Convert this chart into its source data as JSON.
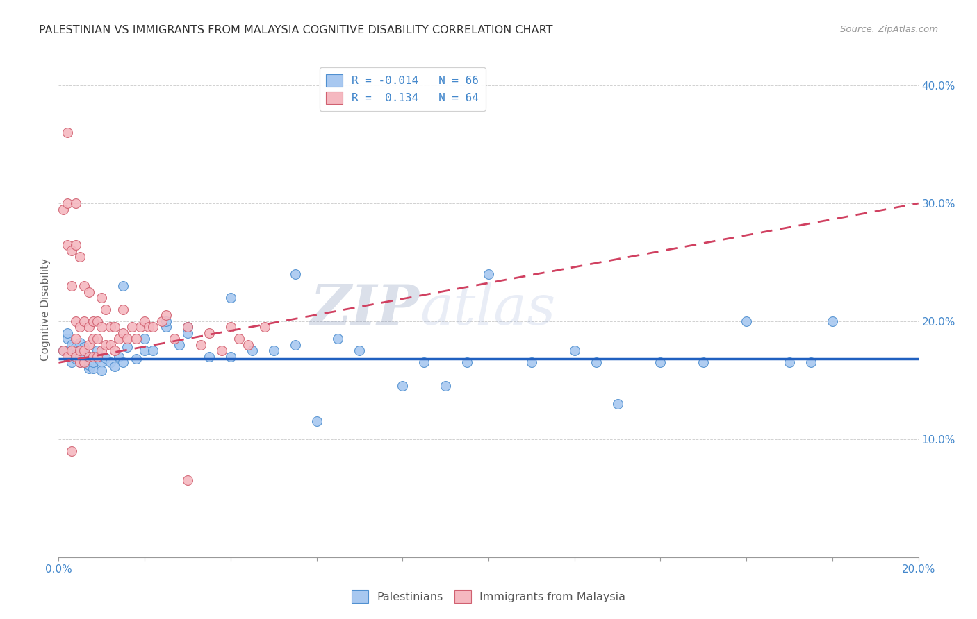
{
  "title": "PALESTINIAN VS IMMIGRANTS FROM MALAYSIA COGNITIVE DISABILITY CORRELATION CHART",
  "source": "Source: ZipAtlas.com",
  "ylabel": "Cognitive Disability",
  "xlim": [
    0.0,
    0.2
  ],
  "ylim": [
    0.0,
    0.42
  ],
  "xticks": [
    0.0,
    0.02,
    0.04,
    0.06,
    0.08,
    0.1,
    0.12,
    0.14,
    0.16,
    0.18,
    0.2
  ],
  "yticks": [
    0.0,
    0.1,
    0.2,
    0.3,
    0.4
  ],
  "legend_labels": [
    "Palestinians",
    "Immigrants from Malaysia"
  ],
  "legend_r_values": [
    "R = -0.014",
    "R =  0.134"
  ],
  "legend_n_values": [
    "N = 66",
    "N = 64"
  ],
  "blue_color": "#a8c8f0",
  "pink_color": "#f5b8c0",
  "blue_edge_color": "#5090d0",
  "pink_edge_color": "#d06070",
  "blue_line_color": "#2060c0",
  "pink_line_color": "#d04060",
  "watermark_zip": "ZIP",
  "watermark_atlas": "atlas",
  "blue_scatter_x": [
    0.001,
    0.002,
    0.002,
    0.003,
    0.003,
    0.003,
    0.004,
    0.004,
    0.004,
    0.005,
    0.005,
    0.005,
    0.005,
    0.006,
    0.006,
    0.006,
    0.007,
    0.007,
    0.007,
    0.008,
    0.008,
    0.009,
    0.009,
    0.01,
    0.01,
    0.011,
    0.012,
    0.013,
    0.014,
    0.015,
    0.016,
    0.018,
    0.02,
    0.022,
    0.025,
    0.028,
    0.03,
    0.035,
    0.04,
    0.045,
    0.05,
    0.055,
    0.06,
    0.065,
    0.07,
    0.08,
    0.09,
    0.1,
    0.11,
    0.12,
    0.125,
    0.13,
    0.14,
    0.15,
    0.16,
    0.17,
    0.175,
    0.18,
    0.085,
    0.095,
    0.055,
    0.04,
    0.03,
    0.025,
    0.02,
    0.015
  ],
  "blue_scatter_y": [
    0.175,
    0.185,
    0.19,
    0.175,
    0.18,
    0.165,
    0.172,
    0.168,
    0.178,
    0.182,
    0.17,
    0.175,
    0.165,
    0.173,
    0.166,
    0.178,
    0.16,
    0.163,
    0.17,
    0.16,
    0.165,
    0.169,
    0.175,
    0.165,
    0.158,
    0.169,
    0.165,
    0.162,
    0.17,
    0.165,
    0.178,
    0.168,
    0.175,
    0.175,
    0.195,
    0.18,
    0.19,
    0.17,
    0.17,
    0.175,
    0.175,
    0.18,
    0.115,
    0.185,
    0.175,
    0.145,
    0.145,
    0.24,
    0.165,
    0.175,
    0.165,
    0.13,
    0.165,
    0.165,
    0.2,
    0.165,
    0.165,
    0.2,
    0.165,
    0.165,
    0.24,
    0.22,
    0.195,
    0.2,
    0.185,
    0.23
  ],
  "pink_scatter_x": [
    0.001,
    0.001,
    0.002,
    0.002,
    0.002,
    0.003,
    0.003,
    0.003,
    0.003,
    0.004,
    0.004,
    0.004,
    0.004,
    0.004,
    0.005,
    0.005,
    0.005,
    0.005,
    0.006,
    0.006,
    0.006,
    0.006,
    0.007,
    0.007,
    0.007,
    0.007,
    0.008,
    0.008,
    0.008,
    0.009,
    0.009,
    0.009,
    0.01,
    0.01,
    0.01,
    0.011,
    0.011,
    0.012,
    0.012,
    0.013,
    0.013,
    0.014,
    0.015,
    0.015,
    0.016,
    0.017,
    0.018,
    0.019,
    0.02,
    0.021,
    0.022,
    0.024,
    0.025,
    0.027,
    0.03,
    0.033,
    0.035,
    0.038,
    0.04,
    0.042,
    0.044,
    0.048,
    0.03,
    0.002
  ],
  "pink_scatter_y": [
    0.175,
    0.295,
    0.3,
    0.265,
    0.17,
    0.26,
    0.23,
    0.175,
    0.09,
    0.3,
    0.265,
    0.2,
    0.185,
    0.17,
    0.255,
    0.195,
    0.175,
    0.165,
    0.23,
    0.2,
    0.175,
    0.165,
    0.225,
    0.195,
    0.18,
    0.17,
    0.2,
    0.185,
    0.17,
    0.2,
    0.185,
    0.17,
    0.22,
    0.195,
    0.175,
    0.21,
    0.18,
    0.195,
    0.18,
    0.195,
    0.175,
    0.185,
    0.21,
    0.19,
    0.185,
    0.195,
    0.185,
    0.195,
    0.2,
    0.195,
    0.195,
    0.2,
    0.205,
    0.185,
    0.195,
    0.18,
    0.19,
    0.175,
    0.195,
    0.185,
    0.18,
    0.195,
    0.065,
    0.36
  ],
  "blue_trend_x": [
    0.0,
    0.2
  ],
  "blue_trend_y": [
    0.168,
    0.168
  ],
  "pink_trend_x": [
    0.0,
    0.2
  ],
  "pink_trend_y": [
    0.165,
    0.3
  ]
}
